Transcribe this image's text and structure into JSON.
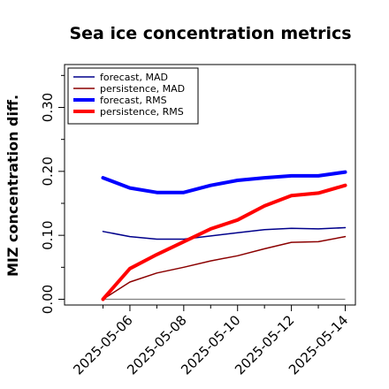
{
  "chart_data": {
    "type": "line",
    "title": "Sea ice concentration metrics",
    "ylabel": "MIZ concentration diff.",
    "xlabel": "",
    "x": [
      "2025-05-05",
      "2025-05-06",
      "2025-05-07",
      "2025-05-08",
      "2025-05-09",
      "2025-05-10",
      "2025-05-11",
      "2025-05-12",
      "2025-05-13",
      "2025-05-14"
    ],
    "x_tick_labels": [
      "2025-05-06",
      "2025-05-08",
      "2025-05-10",
      "2025-05-12",
      "2025-05-14"
    ],
    "highlighted_tick": "2025-05-06",
    "highlight_color": "#228B22",
    "y_ticks": [
      "0.00",
      "0.10",
      "0.20",
      "0.30"
    ],
    "ylim": [
      -0.01,
      0.36
    ],
    "grid": false,
    "legend_position": "top-left",
    "zero_line": {
      "value": 0.0,
      "color": "#808080"
    },
    "series": [
      {
        "name": "forecast,  MAD",
        "color": "#00008B",
        "width": 1.5,
        "values": [
          0.106,
          0.098,
          0.094,
          0.094,
          0.099,
          0.104,
          0.109,
          0.111,
          0.11,
          0.112
        ]
      },
      {
        "name": "persistence, MAD",
        "color": "#8B0000",
        "width": 1.5,
        "values": [
          0.0,
          0.027,
          0.041,
          0.05,
          0.06,
          0.068,
          0.079,
          0.089,
          0.09,
          0.098
        ]
      },
      {
        "name": "forecast,  RMS",
        "color": "#0000FF",
        "width": 4,
        "values": [
          0.19,
          0.174,
          0.167,
          0.167,
          0.178,
          0.186,
          0.19,
          0.193,
          0.193,
          0.199
        ]
      },
      {
        "name": "persistence, RMS",
        "color": "#FF0000",
        "width": 4,
        "values": [
          0.0,
          0.048,
          0.07,
          0.09,
          0.11,
          0.124,
          0.146,
          0.162,
          0.166,
          0.178
        ]
      }
    ]
  }
}
